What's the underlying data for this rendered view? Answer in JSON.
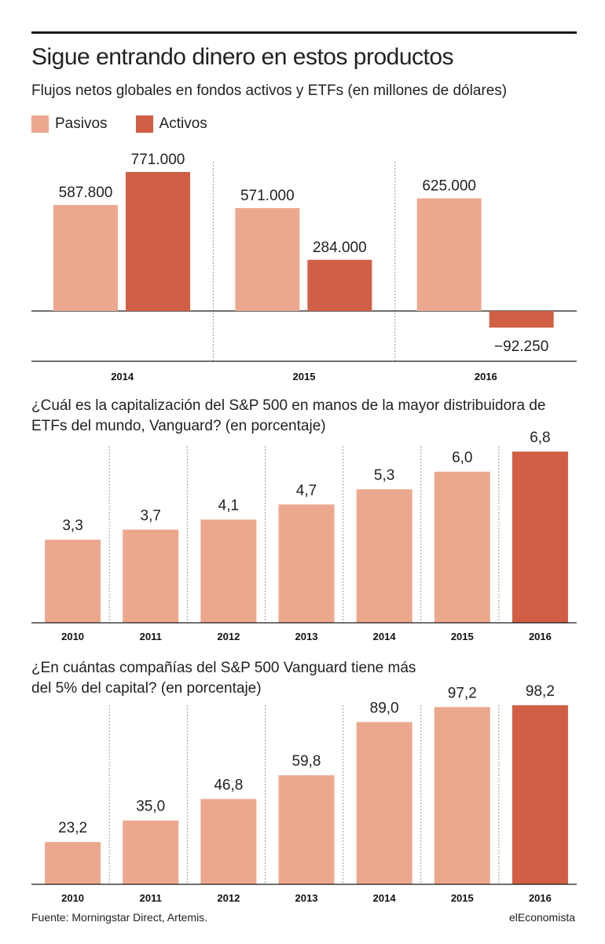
{
  "header": {
    "title": "Sigue entrando dinero en estos productos",
    "subtitle": "Flujos netos globales en fondos activos y ETFs (en millones de dólares)"
  },
  "legend": [
    {
      "label": "Pasivos",
      "color": "#eca88e"
    },
    {
      "label": "Activos",
      "color": "#d05f45"
    }
  ],
  "questions": {
    "q1": "¿Cuál es la capitalización del S&P 500 en manos de la mayor distribuidora de ETFs del mundo, Vanguard? (en porcentaje)",
    "q2": "¿En cuántas compañías del S&P 500 Vanguard tiene más del 5% del capital? (en porcentaje)"
  },
  "footer": {
    "source": "Fuente: Morningstar Direct, Artemis.",
    "brand": "elEconomista"
  },
  "colors": {
    "light": "#eca88e",
    "dark": "#d05f45"
  },
  "chart_data": [
    {
      "type": "bar",
      "title": "Sigue entrando dinero en estos productos",
      "subtitle": "Flujos netos globales en fondos activos y ETFs (en millones de dólares)",
      "categories": [
        "2014",
        "2015",
        "2016"
      ],
      "series": [
        {
          "name": "Pasivos",
          "values": [
            587800,
            571000,
            625000
          ],
          "labels": [
            "587.800",
            "571.000",
            "625.000"
          ]
        },
        {
          "name": "Activos",
          "values": [
            771000,
            284000,
            -92250
          ],
          "labels": [
            "771.000",
            "284.000",
            "−92.250"
          ]
        }
      ],
      "legend": "top-left"
    },
    {
      "type": "bar",
      "title": "¿Cuál es la capitalización del S&P 500 en manos de la mayor distribuidora de ETFs del mundo, Vanguard? (en porcentaje)",
      "categories": [
        "2010",
        "2011",
        "2012",
        "2013",
        "2014",
        "2015",
        "2016"
      ],
      "values": [
        3.3,
        3.7,
        4.1,
        4.7,
        5.3,
        6.0,
        6.8
      ],
      "labels": [
        "3,3",
        "3,7",
        "4,1",
        "4,7",
        "5,3",
        "6,0",
        "6,8"
      ],
      "highlight_last": true
    },
    {
      "type": "bar",
      "title": "¿En cuántas compañías del S&P 500 Vanguard tiene más del 5% del capital? (en porcentaje)",
      "categories": [
        "2010",
        "2011",
        "2012",
        "2013",
        "2014",
        "2015",
        "2016"
      ],
      "values": [
        23.2,
        35.0,
        46.8,
        59.8,
        89.0,
        97.2,
        98.2
      ],
      "labels": [
        "23,2",
        "35,0",
        "46,8",
        "59,8",
        "89,0",
        "97,2",
        "98,2"
      ],
      "highlight_last": true
    }
  ]
}
